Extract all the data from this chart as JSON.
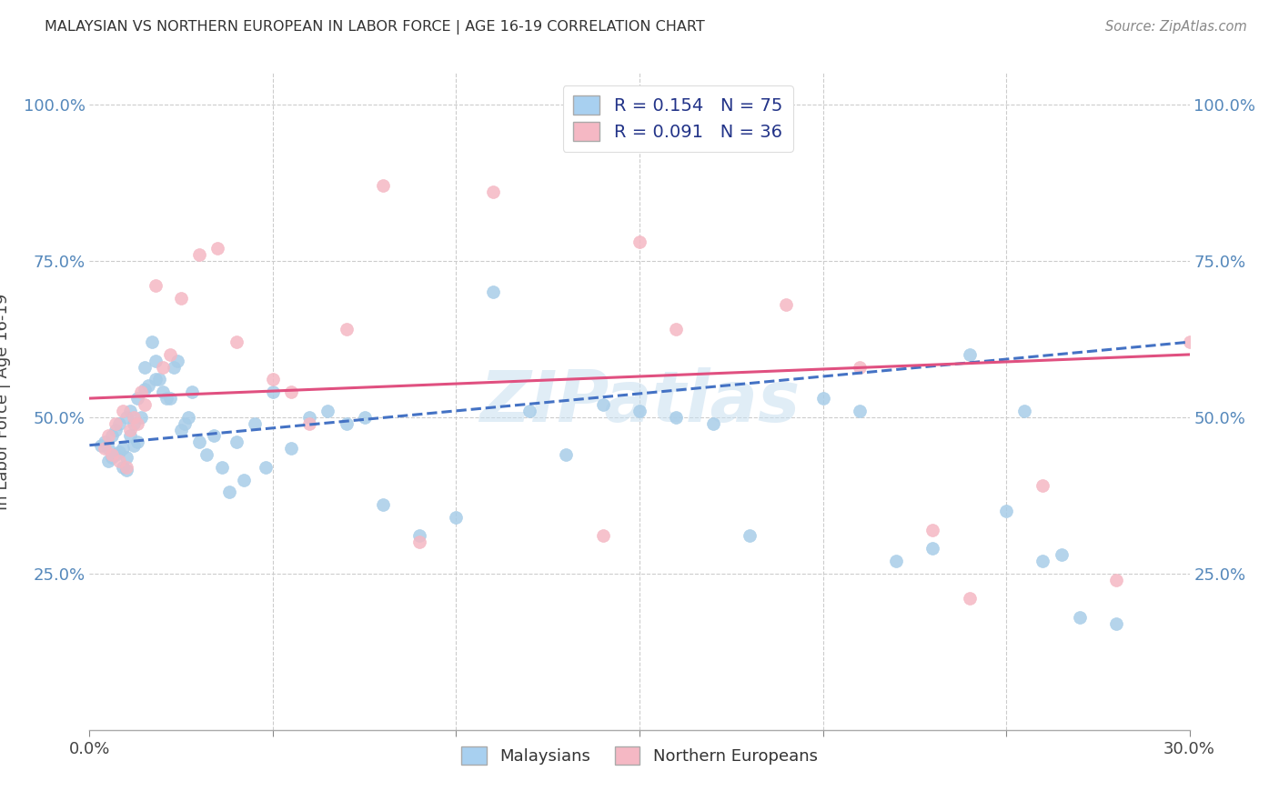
{
  "title": "MALAYSIAN VS NORTHERN EUROPEAN IN LABOR FORCE | AGE 16-19 CORRELATION CHART",
  "source": "Source: ZipAtlas.com",
  "ylabel_label": "In Labor Force | Age 16-19",
  "x_min": 0.0,
  "x_max": 0.3,
  "y_min": 0.0,
  "y_max": 1.05,
  "watermark": "ZIPatlas",
  "blue_scatter_color": "#a8cde8",
  "pink_scatter_color": "#f5b8c4",
  "blue_line_color": "#4472c4",
  "pink_line_color": "#e05080",
  "blue_R": 0.154,
  "blue_N": 75,
  "pink_R": 0.091,
  "pink_N": 36,
  "malaysians_x": [
    0.003,
    0.004,
    0.005,
    0.005,
    0.006,
    0.006,
    0.007,
    0.007,
    0.008,
    0.008,
    0.009,
    0.009,
    0.01,
    0.01,
    0.01,
    0.011,
    0.011,
    0.012,
    0.012,
    0.013,
    0.013,
    0.014,
    0.015,
    0.015,
    0.016,
    0.017,
    0.018,
    0.018,
    0.019,
    0.02,
    0.021,
    0.022,
    0.023,
    0.024,
    0.025,
    0.026,
    0.027,
    0.028,
    0.03,
    0.032,
    0.034,
    0.036,
    0.038,
    0.04,
    0.042,
    0.045,
    0.048,
    0.05,
    0.055,
    0.06,
    0.065,
    0.07,
    0.075,
    0.08,
    0.09,
    0.1,
    0.11,
    0.12,
    0.13,
    0.14,
    0.15,
    0.16,
    0.17,
    0.18,
    0.2,
    0.21,
    0.22,
    0.23,
    0.24,
    0.25,
    0.255,
    0.26,
    0.265,
    0.27,
    0.28
  ],
  "malaysians_y": [
    0.455,
    0.46,
    0.43,
    0.45,
    0.435,
    0.47,
    0.44,
    0.48,
    0.445,
    0.49,
    0.42,
    0.45,
    0.415,
    0.435,
    0.5,
    0.47,
    0.51,
    0.455,
    0.49,
    0.46,
    0.53,
    0.5,
    0.545,
    0.58,
    0.55,
    0.62,
    0.56,
    0.59,
    0.56,
    0.54,
    0.53,
    0.53,
    0.58,
    0.59,
    0.48,
    0.49,
    0.5,
    0.54,
    0.46,
    0.44,
    0.47,
    0.42,
    0.38,
    0.46,
    0.4,
    0.49,
    0.42,
    0.54,
    0.45,
    0.5,
    0.51,
    0.49,
    0.5,
    0.36,
    0.31,
    0.34,
    0.7,
    0.51,
    0.44,
    0.52,
    0.51,
    0.5,
    0.49,
    0.31,
    0.53,
    0.51,
    0.27,
    0.29,
    0.6,
    0.35,
    0.51,
    0.27,
    0.28,
    0.18,
    0.17
  ],
  "northern_x": [
    0.004,
    0.005,
    0.006,
    0.007,
    0.008,
    0.009,
    0.01,
    0.011,
    0.012,
    0.013,
    0.014,
    0.015,
    0.018,
    0.02,
    0.022,
    0.025,
    0.03,
    0.035,
    0.04,
    0.05,
    0.055,
    0.06,
    0.07,
    0.08,
    0.09,
    0.11,
    0.14,
    0.15,
    0.16,
    0.19,
    0.21,
    0.23,
    0.24,
    0.26,
    0.28,
    0.3
  ],
  "northern_y": [
    0.45,
    0.47,
    0.44,
    0.49,
    0.43,
    0.51,
    0.42,
    0.48,
    0.5,
    0.49,
    0.54,
    0.52,
    0.71,
    0.58,
    0.6,
    0.69,
    0.76,
    0.77,
    0.62,
    0.56,
    0.54,
    0.49,
    0.64,
    0.87,
    0.3,
    0.86,
    0.31,
    0.78,
    0.64,
    0.68,
    0.58,
    0.32,
    0.21,
    0.39,
    0.24,
    0.62
  ]
}
